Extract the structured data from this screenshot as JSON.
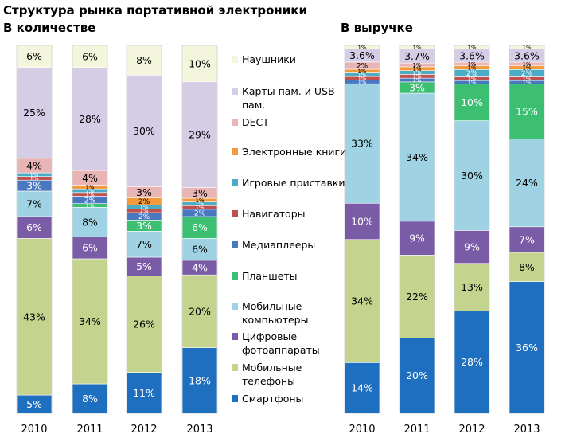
{
  "title": "Структура рынка портативной электроники",
  "chart_data": [
    {
      "type": "bar",
      "stacked": true,
      "normalized": true,
      "title": "В количестве",
      "categories": [
        "2010",
        "2011",
        "2012",
        "2013"
      ],
      "ylim": [
        0,
        100
      ],
      "series": [
        {
          "name": "Смартфоны",
          "color": "#1F6FC0",
          "values": [
            5,
            8,
            11,
            18
          ],
          "labels": [
            "5%",
            "8%",
            "11%",
            "18%"
          ]
        },
        {
          "name": "Мобильные телефоны",
          "color": "#C4D38E",
          "values": [
            43,
            34,
            26,
            20
          ],
          "labels": [
            "43%",
            "34%",
            "26%",
            "20%"
          ]
        },
        {
          "name": "Цифровые фотоаппараты",
          "color": "#7A5BA6",
          "values": [
            6,
            6,
            5,
            4
          ],
          "labels": [
            "6%",
            "6%",
            "5%",
            "4%"
          ]
        },
        {
          "name": "Мобильные компьютеры",
          "color": "#9FD3E3",
          "values": [
            7,
            8,
            7,
            6
          ],
          "labels": [
            "7%",
            "8%",
            "7%",
            "6%"
          ]
        },
        {
          "name": "Планшеты",
          "color": "#3DBF72",
          "values": [
            0,
            1,
            3,
            6
          ],
          "labels": [
            "",
            "1%",
            "3%",
            "6%"
          ]
        },
        {
          "name": "Медиаплееры",
          "color": "#4A78C0",
          "values": [
            3,
            2,
            2,
            2
          ],
          "labels": [
            "3%",
            "2%",
            "2%",
            "2%"
          ]
        },
        {
          "name": "Навигаторы",
          "color": "#C0504D",
          "values": [
            1,
            1,
            1,
            1
          ],
          "labels": [
            "1%",
            "1%",
            "1%",
            "1%"
          ]
        },
        {
          "name": "Игровые приставки",
          "color": "#4BACC6",
          "values": [
            1,
            1,
            1,
            1
          ],
          "labels": [
            "1%",
            "1%",
            "1%",
            "1%"
          ]
        },
        {
          "name": "Электронные книги",
          "color": "#F39A3A",
          "values": [
            0,
            1,
            2,
            1
          ],
          "labels": [
            "",
            "1%",
            "2%",
            "1%"
          ]
        },
        {
          "name": "DECT",
          "color": "#E8B4B4",
          "values": [
            4,
            4,
            3,
            3
          ],
          "labels": [
            "4%",
            "4%",
            "3%",
            "3%"
          ]
        },
        {
          "name": "Карты пам. и USB-пам.",
          "color": "#D5CCE6",
          "values": [
            25,
            28,
            30,
            29
          ],
          "labels": [
            "25%",
            "28%",
            "30%",
            "29%"
          ]
        },
        {
          "name": "Наушники",
          "color": "#F3F5DC",
          "values": [
            6,
            6,
            8,
            10
          ],
          "labels": [
            "6%",
            "6%",
            "8%",
            "10%"
          ]
        }
      ]
    },
    {
      "type": "bar",
      "stacked": true,
      "normalized": true,
      "title": "В выручке",
      "categories": [
        "2010",
        "2011",
        "2012",
        "2013"
      ],
      "ylim": [
        0,
        100
      ],
      "series": [
        {
          "name": "Смартфоны",
          "color": "#1F6FC0",
          "values": [
            14,
            20,
            28,
            36
          ],
          "labels": [
            "14%",
            "20%",
            "28%",
            "36%"
          ]
        },
        {
          "name": "Мобильные телефоны",
          "color": "#C4D38E",
          "values": [
            34,
            22,
            13,
            8
          ],
          "labels": [
            "34%",
            "22%",
            "13%",
            "8%"
          ]
        },
        {
          "name": "Цифровые фотоаппараты",
          "color": "#7A5BA6",
          "values": [
            10,
            9,
            9,
            7
          ],
          "labels": [
            "10%",
            "9%",
            "9%",
            "7%"
          ]
        },
        {
          "name": "Мобильные компьютеры",
          "color": "#9FD3E3",
          "values": [
            33,
            34,
            30,
            24
          ],
          "labels": [
            "33%",
            "34%",
            "30%",
            "24%"
          ]
        },
        {
          "name": "Планшеты",
          "color": "#3DBF72",
          "values": [
            0,
            3,
            10,
            15
          ],
          "labels": [
            "",
            "3%",
            "10%",
            "15%"
          ]
        },
        {
          "name": "Медиаплееры",
          "color": "#4A78C0",
          "values": [
            1,
            1,
            1,
            1
          ],
          "labels": [
            "1%",
            "1%",
            "1%",
            "1%"
          ]
        },
        {
          "name": "Навигаторы",
          "color": "#C0504D",
          "values": [
            1,
            1,
            1,
            1
          ],
          "labels": [
            "1%",
            "1%",
            "1%",
            "1%"
          ]
        },
        {
          "name": "Игровые приставки",
          "color": "#4BACC6",
          "values": [
            1,
            1,
            2,
            2
          ],
          "labels": [
            "1%",
            "1%",
            "2%",
            "2%"
          ]
        },
        {
          "name": "Электронные книги",
          "color": "#F39A3A",
          "values": [
            1,
            1,
            1,
            1
          ],
          "labels": [
            "1%",
            "1%",
            "1%",
            "1%"
          ]
        },
        {
          "name": "DECT",
          "color": "#E8B4B4",
          "values": [
            2,
            1,
            1,
            1
          ],
          "labels": [
            "2%",
            "1%",
            "1%",
            "1%"
          ]
        },
        {
          "name": "Карты пам. и USB-пам.",
          "color": "#D5CCE6",
          "values": [
            3.6,
            3.7,
            3.6,
            3.6
          ],
          "labels": [
            "3.6%",
            "3.7%",
            "3.6%",
            "3.6%"
          ]
        },
        {
          "name": "Наушники",
          "color": "#F3F5DC",
          "values": [
            1,
            1,
            1,
            1
          ],
          "labels": [
            "1%",
            "1%",
            "1%",
            "1%"
          ]
        }
      ]
    }
  ],
  "legend": [
    {
      "label": "Наушники",
      "color": "#F3F5DC"
    },
    {
      "label": "Карты пам. и USB-пам.",
      "color": "#D5CCE6"
    },
    {
      "label": "DECT",
      "color": "#E8B4B4"
    },
    {
      "label": "Электронные книги",
      "color": "#F39A3A"
    },
    {
      "label": "Игровые приставки",
      "color": "#4BACC6"
    },
    {
      "label": "Навигаторы",
      "color": "#C0504D"
    },
    {
      "label": "Медиаплееры",
      "color": "#4A78C0"
    },
    {
      "label": "Планшеты",
      "color": "#3DBF72"
    },
    {
      "label": "Мобильные компьютеры",
      "color": "#9FD3E3"
    },
    {
      "label": "Цифровые фотоаппараты",
      "color": "#7A5BA6"
    },
    {
      "label": "Мобильные телефоны",
      "color": "#C4D38E"
    },
    {
      "label": "Смартфоны",
      "color": "#1F6FC0"
    }
  ]
}
